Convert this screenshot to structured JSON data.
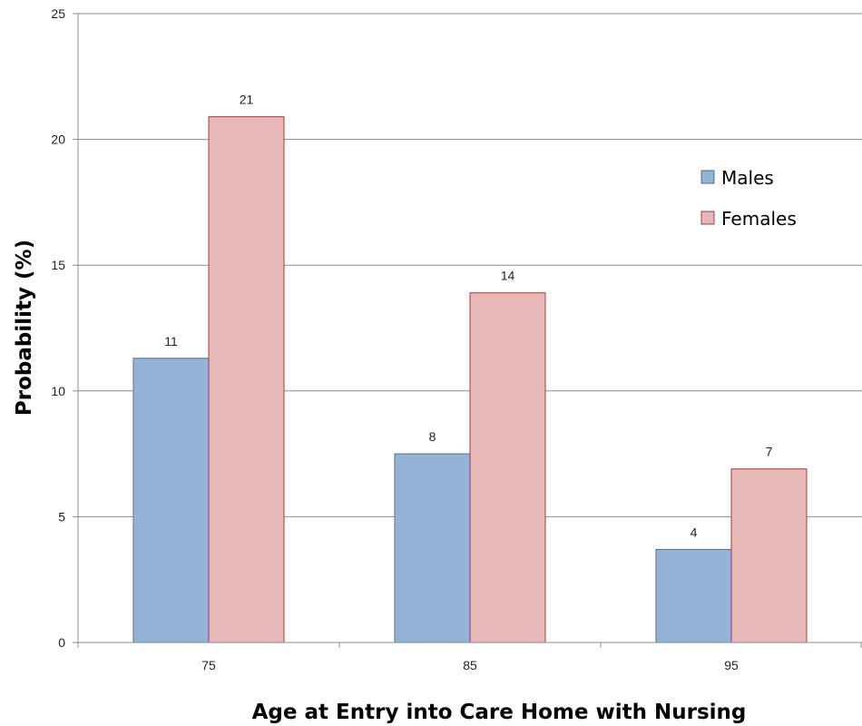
{
  "chart_data": {
    "type": "bar",
    "title": "",
    "xlabel": "Age at Entry into Care Home with Nursing",
    "ylabel": "Probability (%)",
    "categories": [
      "75",
      "85",
      "95"
    ],
    "series": [
      {
        "name": "Males",
        "values": [
          11.3,
          7.5,
          3.7
        ],
        "labels": [
          "11",
          "8",
          "4"
        ],
        "color": "#95b3d7",
        "stroke": "#4f6f99"
      },
      {
        "name": "Females",
        "values": [
          20.9,
          13.9,
          6.9
        ],
        "labels": [
          "21",
          "14",
          "7"
        ],
        "color": "#e6b9b8",
        "stroke": "#a8393a"
      }
    ],
    "ylim": [
      0,
      25
    ],
    "yticks": [
      0,
      5,
      10,
      15,
      20,
      25
    ],
    "grid": true,
    "legend_position": "right"
  }
}
